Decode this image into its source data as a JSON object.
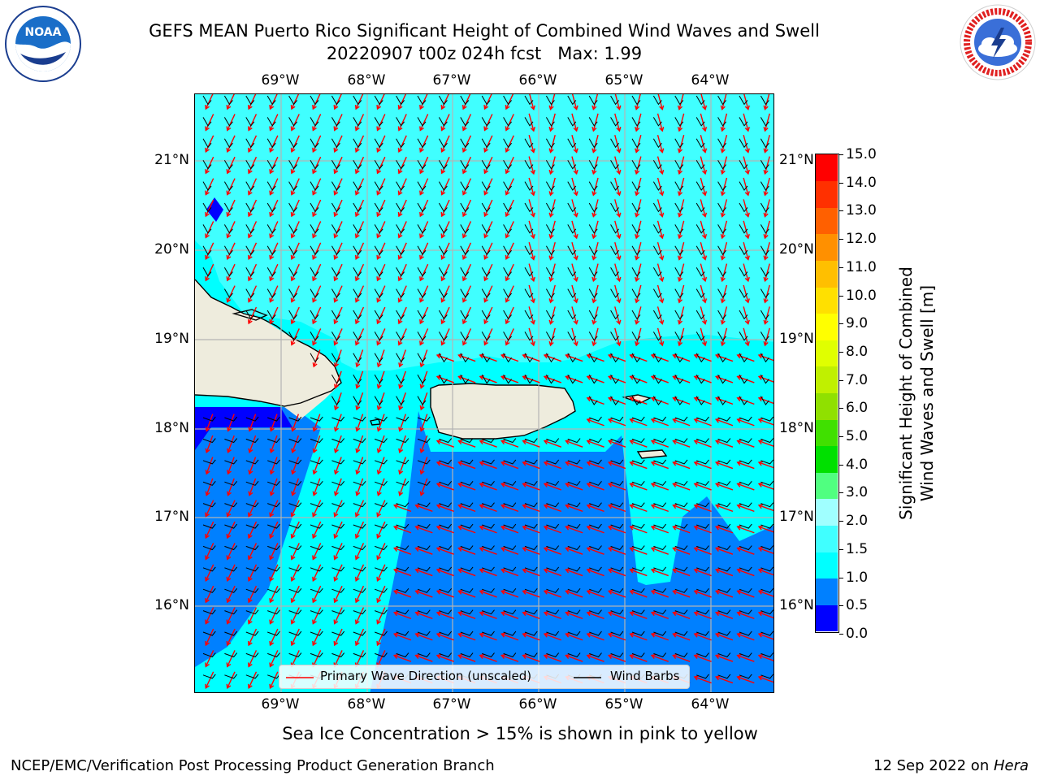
{
  "title_line1": "GEFS MEAN Puerto Rico Significant Height of Combined Wind Waves and Swell",
  "title_line2": "20220907 t00z 024h fcst   Max: 1.99",
  "lon_labels": [
    "69°W",
    "68°W",
    "67°W",
    "66°W",
    "65°W",
    "64°W"
  ],
  "lat_labels": [
    "21°N",
    "20°N",
    "19°N",
    "18°N",
    "17°N",
    "16°N"
  ],
  "legend": {
    "wave_label": "Primary Wave Direction (unscaled)",
    "barb_label": "Wind Barbs",
    "wave_color": "#ff0000",
    "barb_color": "#000000"
  },
  "colorbar": {
    "label_line1": "Significant Height of Combined",
    "label_line2": "Wind Waves and Swell [m]",
    "ticks": [
      "15.0",
      "14.0",
      "13.0",
      "12.0",
      "11.0",
      "10.0",
      "9.0",
      "8.0",
      "7.0",
      "6.0",
      "5.0",
      "4.0",
      "3.0",
      "2.0",
      "1.5",
      "1.0",
      "0.5",
      "0.0"
    ],
    "colors": [
      "#0000ff",
      "#0080ff",
      "#00ffff",
      "#40ffff",
      "#a0ffff",
      "#50ff80",
      "#00e000",
      "#40e000",
      "#90e000",
      "#c0f000",
      "#e0ff00",
      "#ffff00",
      "#ffe000",
      "#ffbf00",
      "#ff9000",
      "#ff6000",
      "#ff3000",
      "#ff0000"
    ]
  },
  "map_colors": {
    "land": "#eeecdd",
    "deep": "#0080ff",
    "mid": "#00ffff",
    "shallow": "#40ffff",
    "lowest": "#0000ff",
    "lake": "#0000ff"
  },
  "ice_note": "Sea Ice Concentration > 15% is shown in pink to yellow",
  "footer_left": "NCEP/EMC/Verification Post Processing Product Generation Branch",
  "footer_right_date": "12 Sep 2022 on ",
  "footer_right_host": "Hera",
  "logos": {
    "noaa_text": "NOAA",
    "noaa_ring": "NATIONAL OCEANIC AND ATMOSPHERIC ADMINISTRATION · U.S. DEPARTMENT OF COMMERCE",
    "nws_ring": "NATIONAL WEATHER SERVICE"
  }
}
